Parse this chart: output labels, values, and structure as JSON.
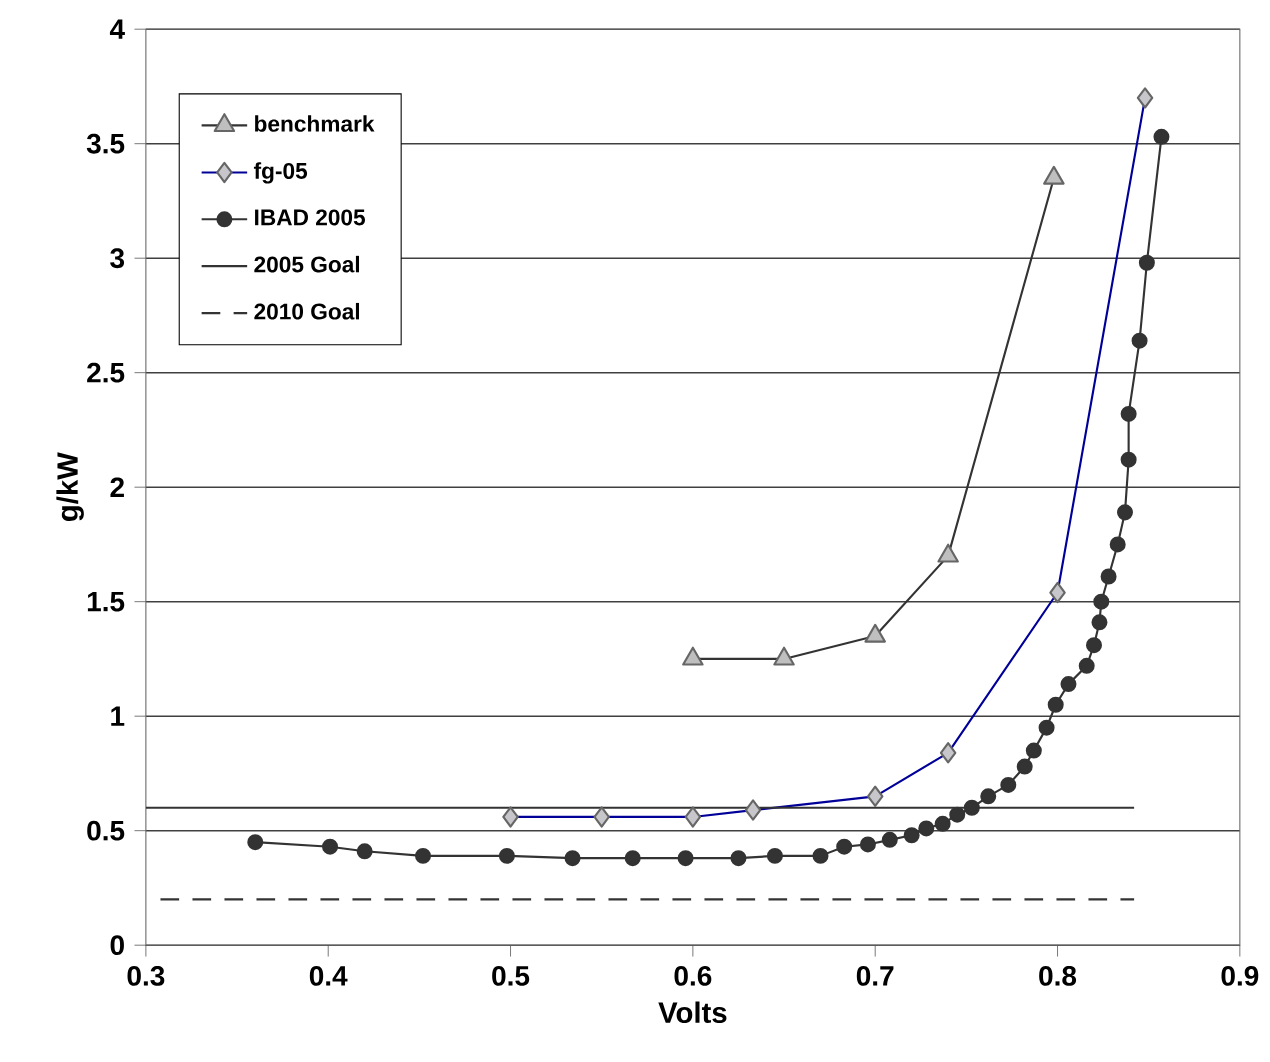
{
  "chart_data": {
    "type": "line",
    "xlabel": "Volts",
    "ylabel": "g/kW",
    "xlim": [
      0.3,
      0.9
    ],
    "ylim": [
      0,
      4
    ],
    "xticks": [
      0.3,
      0.4,
      0.5,
      0.6,
      0.7,
      0.8,
      0.9
    ],
    "yticks": [
      0,
      0.5,
      1,
      1.5,
      2,
      2.5,
      3,
      3.5,
      4
    ],
    "grid": "y",
    "legend": "top left",
    "series": [
      {
        "name": "benchmark",
        "color": "#333333",
        "marker": "triangle",
        "x": [
          0.6,
          0.65,
          0.7,
          0.74,
          0.798
        ],
        "values": [
          1.25,
          1.25,
          1.35,
          1.7,
          3.35
        ]
      },
      {
        "name": "fg-05",
        "color": "#000099",
        "marker": "diamond",
        "x": [
          0.5,
          0.55,
          0.6,
          0.633,
          0.7,
          0.74,
          0.8,
          0.848
        ],
        "values": [
          0.56,
          0.56,
          0.56,
          0.59,
          0.65,
          0.84,
          1.54,
          3.7
        ]
      },
      {
        "name": "IBAD 2005",
        "color": "#333333",
        "marker": "circle",
        "x": [
          0.36,
          0.401,
          0.42,
          0.452,
          0.498,
          0.534,
          0.567,
          0.596,
          0.625,
          0.645,
          0.67,
          0.683,
          0.696,
          0.708,
          0.72,
          0.728,
          0.737,
          0.745,
          0.753,
          0.762,
          0.773,
          0.782,
          0.787,
          0.794,
          0.799,
          0.806,
          0.816,
          0.82,
          0.823,
          0.824,
          0.828,
          0.833,
          0.837,
          0.839,
          0.839,
          0.845,
          0.849,
          0.857
        ],
        "values": [
          0.45,
          0.43,
          0.41,
          0.39,
          0.39,
          0.38,
          0.38,
          0.38,
          0.38,
          0.39,
          0.39,
          0.43,
          0.44,
          0.46,
          0.48,
          0.51,
          0.53,
          0.57,
          0.6,
          0.65,
          0.7,
          0.78,
          0.85,
          0.95,
          1.05,
          1.14,
          1.22,
          1.31,
          1.41,
          1.5,
          1.61,
          1.75,
          1.89,
          2.12,
          2.32,
          2.64,
          2.98,
          3.53
        ]
      },
      {
        "name": "2005 Goal",
        "color": "#333333",
        "marker": "none",
        "line_style": "solid",
        "x": [
          0.3,
          0.842
        ],
        "values": [
          0.6,
          0.6
        ]
      },
      {
        "name": "2010 Goal",
        "color": "#333333",
        "marker": "none",
        "line_style": "dashed",
        "x": [
          0.308,
          0.842
        ],
        "values": [
          0.2,
          0.2
        ]
      }
    ]
  }
}
